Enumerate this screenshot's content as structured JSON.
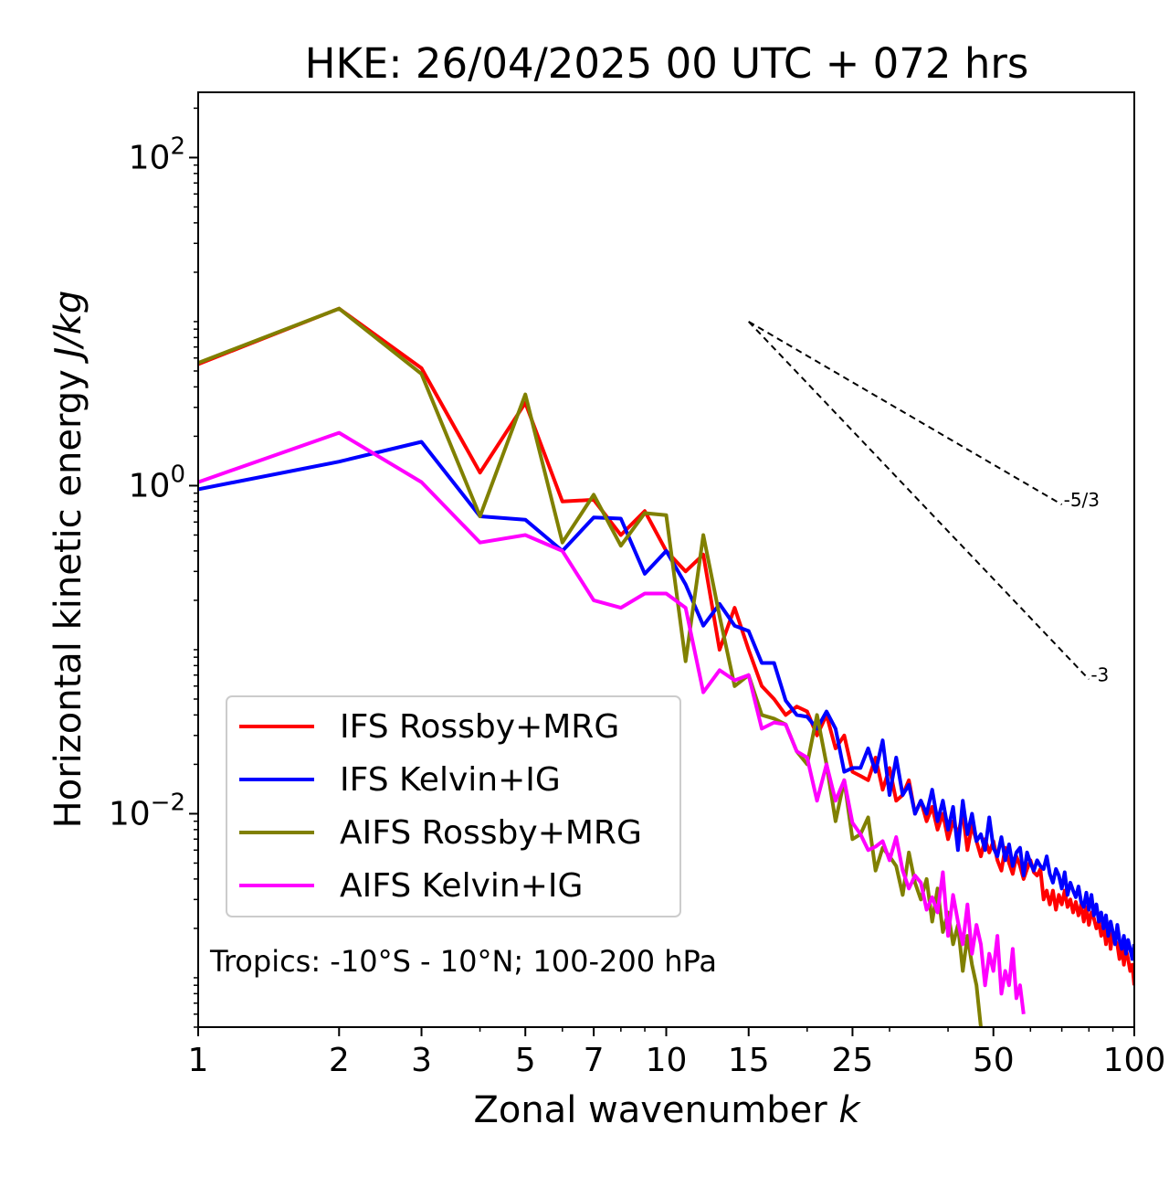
{
  "chart_data": {
    "type": "line",
    "title": "HKE: 26/04/2025 00 UTC + 072 hrs",
    "xlabel": "Zonal wavenumber",
    "xlabel_italic": "k",
    "ylabel": "Horizontal kinetic energy",
    "ylabel_italic": "J/kg",
    "xscale": "log",
    "yscale": "log",
    "xlim": [
      1,
      100
    ],
    "ylim": [
      0.0005,
      250
    ],
    "xticks": [
      1,
      2,
      3,
      5,
      7,
      10,
      15,
      25,
      50,
      100
    ],
    "xtick_labels": [
      "1",
      "2",
      "3",
      "5",
      "7",
      "10",
      "15",
      "25",
      "50",
      "100"
    ],
    "yticks": [
      0.01,
      1,
      100
    ],
    "ytick_labels": [
      {
        "base": "10",
        "exp": "−2"
      },
      {
        "base": "10",
        "exp": "0"
      },
      {
        "base": "10",
        "exp": "2"
      }
    ],
    "grid": false,
    "legend_position": "bottom-left",
    "annotation": "Tropics: -10°S - 10°N; 100-200 hPa",
    "reference_slopes": [
      {
        "label": "-5/3",
        "slope": -1.6667,
        "x_start": 15,
        "y_start": 10,
        "x_end": 70
      },
      {
        "label": "-3",
        "slope": -3,
        "x_start": 15,
        "y_start": 10,
        "x_end": 80
      }
    ],
    "series": [
      {
        "name": "IFS Rossby+MRG",
        "color": "#ff0000",
        "x": [
          1,
          2,
          3,
          4,
          5,
          6,
          7,
          8,
          9,
          10,
          11,
          12,
          13,
          14,
          15,
          16,
          17,
          18,
          19,
          20,
          21,
          22,
          23,
          24,
          25,
          26,
          27,
          28,
          29,
          30,
          31,
          32,
          33,
          34,
          35,
          36,
          37,
          38,
          39,
          40,
          41,
          42,
          43,
          44,
          45,
          46,
          47,
          48,
          49,
          50,
          51,
          52,
          53,
          54,
          55,
          56,
          57,
          58,
          59,
          60,
          61,
          62,
          63,
          64,
          65,
          66,
          67,
          68,
          69,
          70,
          71,
          72,
          73,
          74,
          75,
          76,
          77,
          78,
          79,
          80,
          81,
          82,
          83,
          84,
          85,
          86,
          87,
          88,
          89,
          90,
          91,
          92,
          93,
          94,
          95,
          96,
          97,
          98,
          99,
          100
        ],
        "values": [
          5.5,
          12,
          5.2,
          1.2,
          3.2,
          0.8,
          0.82,
          0.5,
          0.7,
          0.4,
          0.3,
          0.38,
          0.1,
          0.18,
          0.1,
          0.06,
          0.05,
          0.04,
          0.045,
          0.042,
          0.03,
          0.04,
          0.025,
          0.03,
          0.018,
          0.017,
          0.016,
          0.022,
          0.014,
          0.019,
          0.012,
          0.013,
          0.016,
          0.01,
          0.012,
          0.009,
          0.011,
          0.008,
          0.01,
          0.007,
          0.009,
          0.0075,
          0.01,
          0.006,
          0.0085,
          0.0068,
          0.0055,
          0.007,
          0.0058,
          0.0068,
          0.0052,
          0.0045,
          0.0062,
          0.005,
          0.0043,
          0.0055,
          0.0048,
          0.004,
          0.0046,
          0.0052,
          0.0044,
          0.0042,
          0.0046,
          0.003,
          0.0034,
          0.0028,
          0.0034,
          0.0026,
          0.0032,
          0.0028,
          0.0034,
          0.0027,
          0.003,
          0.0025,
          0.0029,
          0.0024,
          0.0028,
          0.0022,
          0.0027,
          0.0021,
          0.0025,
          0.0023,
          0.002,
          0.0022,
          0.0018,
          0.0021,
          0.0016,
          0.0021,
          0.0015,
          0.0019,
          0.0017,
          0.0016,
          0.0013,
          0.0016,
          0.0012,
          0.0015,
          0.0013,
          0.0011,
          0.0012,
          0.0009
        ]
      },
      {
        "name": "IFS Kelvin+IG",
        "color": "#0000ff",
        "x": [
          1,
          2,
          3,
          4,
          5,
          6,
          7,
          8,
          9,
          10,
          11,
          12,
          13,
          14,
          15,
          16,
          17,
          18,
          19,
          20,
          21,
          22,
          23,
          24,
          25,
          26,
          27,
          28,
          29,
          30,
          31,
          32,
          33,
          34,
          35,
          36,
          37,
          38,
          39,
          40,
          41,
          42,
          43,
          44,
          45,
          46,
          47,
          48,
          49,
          50,
          51,
          52,
          53,
          54,
          55,
          56,
          57,
          58,
          59,
          60,
          61,
          62,
          63,
          64,
          65,
          66,
          67,
          68,
          69,
          70,
          71,
          72,
          73,
          74,
          75,
          76,
          77,
          78,
          79,
          80,
          81,
          82,
          83,
          84,
          85,
          86,
          87,
          88,
          89,
          90,
          91,
          92,
          93,
          94,
          95,
          96,
          97,
          98,
          99,
          100
        ],
        "values": [
          0.95,
          1.4,
          1.85,
          0.65,
          0.62,
          0.4,
          0.64,
          0.63,
          0.29,
          0.4,
          0.25,
          0.14,
          0.19,
          0.14,
          0.13,
          0.083,
          0.083,
          0.049,
          0.04,
          0.039,
          0.033,
          0.042,
          0.033,
          0.018,
          0.019,
          0.019,
          0.025,
          0.018,
          0.028,
          0.013,
          0.022,
          0.013,
          0.015,
          0.01,
          0.012,
          0.01,
          0.014,
          0.009,
          0.012,
          0.008,
          0.011,
          0.006,
          0.012,
          0.0075,
          0.01,
          0.0068,
          0.0075,
          0.006,
          0.0095,
          0.0062,
          0.0055,
          0.0072,
          0.0052,
          0.0065,
          0.0048,
          0.0058,
          0.0062,
          0.0042,
          0.0058,
          0.005,
          0.0045,
          0.0052,
          0.0048,
          0.0046,
          0.0055,
          0.0043,
          0.0038,
          0.0046,
          0.0042,
          0.0035,
          0.0044,
          0.0032,
          0.0038,
          0.0034,
          0.0031,
          0.0036,
          0.0029,
          0.0027,
          0.0033,
          0.0026,
          0.0032,
          0.0024,
          0.0028,
          0.0022,
          0.0025,
          0.002,
          0.0024,
          0.0018,
          0.0022,
          0.0019,
          0.0016,
          0.0021,
          0.0017,
          0.0015,
          0.0018,
          0.0014,
          0.0017,
          0.0015,
          0.0013,
          0.0016
        ]
      },
      {
        "name": "AIFS Rossby+MRG",
        "color": "#808000",
        "x": [
          1,
          2,
          3,
          4,
          5,
          6,
          7,
          8,
          9,
          10,
          11,
          12,
          13,
          14,
          15,
          16,
          17,
          18,
          19,
          20,
          21,
          22,
          23,
          24,
          25,
          26,
          27,
          28,
          29,
          30,
          31,
          32,
          33,
          34,
          35,
          36,
          37,
          38,
          39,
          40,
          41,
          42,
          43,
          44,
          45,
          46,
          47
        ],
        "values": [
          5.6,
          12,
          4.8,
          0.65,
          3.6,
          0.45,
          0.88,
          0.43,
          0.68,
          0.66,
          0.085,
          0.5,
          0.16,
          0.06,
          0.07,
          0.04,
          0.038,
          0.035,
          0.024,
          0.02,
          0.04,
          0.02,
          0.009,
          0.016,
          0.007,
          0.0075,
          0.0095,
          0.0045,
          0.0062,
          0.0055,
          0.0048,
          0.0032,
          0.0058,
          0.0038,
          0.003,
          0.004,
          0.0022,
          0.0035,
          0.0019,
          0.0025,
          0.0016,
          0.0021,
          0.0011,
          0.0018,
          0.0012,
          0.0009,
          0.0005
        ]
      },
      {
        "name": "AIFS Kelvin+IG",
        "color": "#ff00ff",
        "x": [
          1,
          2,
          3,
          4,
          5,
          6,
          7,
          8,
          9,
          10,
          11,
          12,
          13,
          14,
          15,
          16,
          17,
          18,
          19,
          20,
          21,
          22,
          23,
          24,
          25,
          26,
          27,
          28,
          29,
          30,
          31,
          32,
          33,
          34,
          35,
          36,
          37,
          38,
          39,
          40,
          41,
          42,
          43,
          44,
          45,
          46,
          47,
          48,
          49,
          50,
          51,
          52,
          53,
          54,
          55,
          56,
          57,
          58
        ],
        "values": [
          1.05,
          2.1,
          1.05,
          0.45,
          0.5,
          0.4,
          0.2,
          0.18,
          0.22,
          0.22,
          0.18,
          0.055,
          0.075,
          0.065,
          0.07,
          0.033,
          0.036,
          0.035,
          0.024,
          0.022,
          0.012,
          0.02,
          0.012,
          0.016,
          0.0088,
          0.0075,
          0.006,
          0.0063,
          0.0068,
          0.0052,
          0.0072,
          0.0045,
          0.0035,
          0.0042,
          0.0038,
          0.0026,
          0.0031,
          0.0025,
          0.0044,
          0.0018,
          0.0032,
          0.0022,
          0.0016,
          0.0028,
          0.0014,
          0.0021,
          0.0016,
          0.0009,
          0.0014,
          0.0011,
          0.0018,
          0.0008,
          0.0011,
          0.0009,
          0.0015,
          0.00075,
          0.0009,
          0.0006
        ]
      }
    ]
  }
}
